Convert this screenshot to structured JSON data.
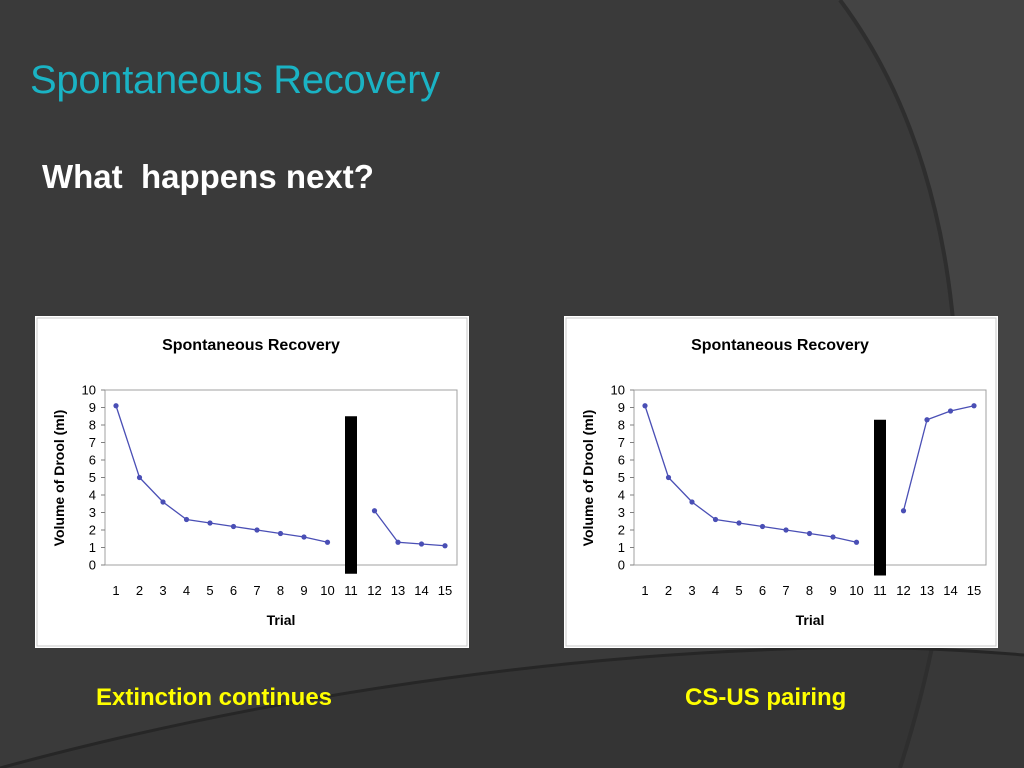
{
  "slide": {
    "title": "Spontaneous Recovery",
    "question": "What  happens next?",
    "captions": [
      "Extinction continues",
      "CS-US pairing"
    ]
  },
  "colors": {
    "background": "#3a3a3a",
    "title": "#1ab3c4",
    "question": "#ffffff",
    "caption": "#ffff00",
    "series": "#4a4fb5",
    "pause_bar": "#000000"
  },
  "chart_data": [
    {
      "type": "line",
      "title": "Spontaneous Recovery",
      "xlabel": "Trial",
      "ylabel": "Volume of Drool (ml)",
      "x": [
        1,
        2,
        3,
        4,
        5,
        6,
        7,
        8,
        9,
        10,
        11,
        12,
        13,
        14,
        15
      ],
      "ylim": [
        0,
        10
      ],
      "yticks": [
        0,
        1,
        2,
        3,
        4,
        5,
        6,
        7,
        8,
        9,
        10
      ],
      "grid": false,
      "segments": [
        {
          "x": [
            1,
            2,
            3,
            4,
            5,
            6,
            7,
            8,
            9,
            10
          ],
          "y": [
            9.1,
            5.0,
            3.6,
            2.6,
            2.4,
            2.2,
            2.0,
            1.8,
            1.6,
            1.3
          ]
        },
        {
          "x": [
            12,
            13,
            14,
            15
          ],
          "y": [
            3.1,
            1.3,
            1.2,
            1.1
          ]
        }
      ],
      "pause_bar": {
        "x": 11,
        "y_top": 8.5,
        "y_bottom": -0.5
      }
    },
    {
      "type": "line",
      "title": "Spontaneous Recovery",
      "xlabel": "Trial",
      "ylabel": "Volume of Drool (ml)",
      "x": [
        1,
        2,
        3,
        4,
        5,
        6,
        7,
        8,
        9,
        10,
        11,
        12,
        13,
        14,
        15
      ],
      "ylim": [
        0,
        10
      ],
      "yticks": [
        0,
        1,
        2,
        3,
        4,
        5,
        6,
        7,
        8,
        9,
        10
      ],
      "grid": false,
      "segments": [
        {
          "x": [
            1,
            2,
            3,
            4,
            5,
            6,
            7,
            8,
            9,
            10
          ],
          "y": [
            9.1,
            5.0,
            3.6,
            2.6,
            2.4,
            2.2,
            2.0,
            1.8,
            1.6,
            1.3
          ]
        },
        {
          "x": [
            12,
            13,
            14,
            15
          ],
          "y": [
            3.1,
            8.3,
            8.8,
            9.1
          ]
        }
      ],
      "pause_bar": {
        "x": 11,
        "y_top": 8.3,
        "y_bottom": -0.6
      }
    }
  ]
}
